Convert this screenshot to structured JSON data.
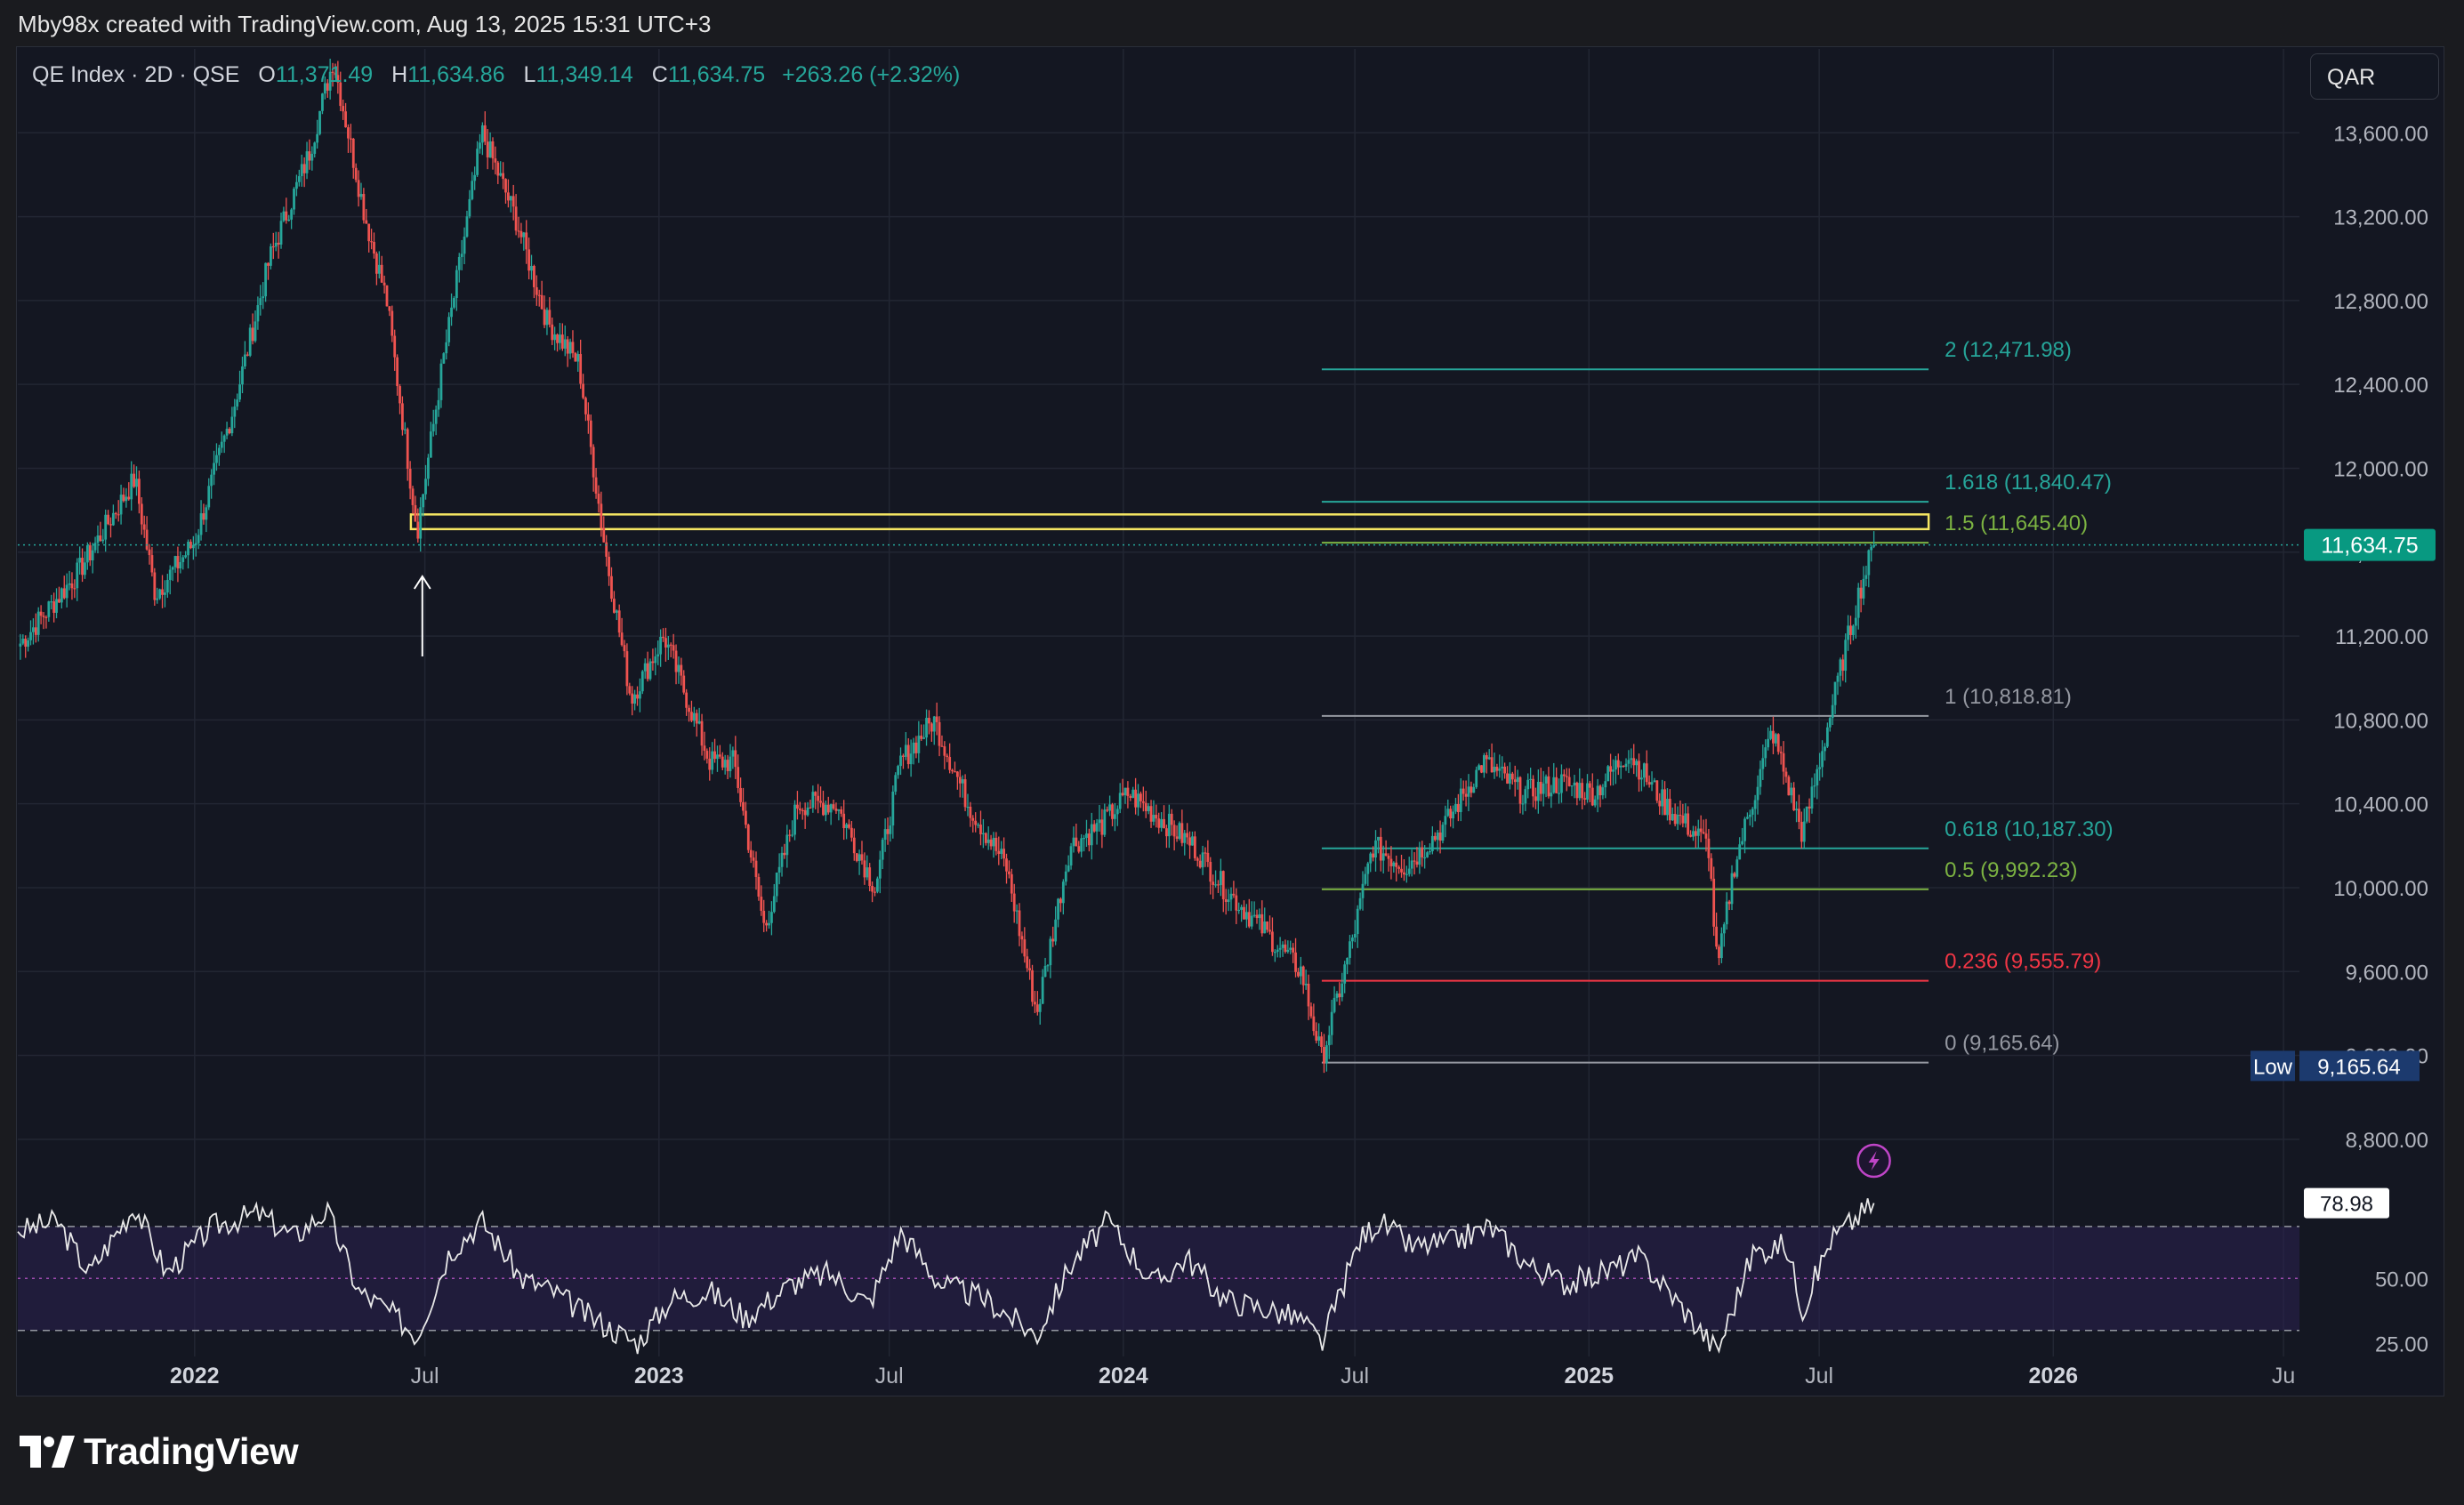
{
  "credit": "Mby98x created with TradingView.com, Aug 13, 2025 15:31 UTC+3",
  "legend": {
    "symbol": "QE Index · 2D · QSE",
    "o_label": "O",
    "o_value": "11,371.49",
    "h_label": "H",
    "h_value": "11,634.86",
    "l_label": "L",
    "l_value": "11,349.14",
    "c_label": "C",
    "c_value": "11,634.75",
    "change": "+263.26 (+2.32%)"
  },
  "currency": "QAR",
  "brand": "TradingView",
  "colors": {
    "up": "#26a69a",
    "down": "#ef5350",
    "background": "#141722",
    "fib_teal": "#26a69a",
    "fib_green": "#7cb342",
    "fib_red": "#f23645",
    "fib_gray": "#9598a1",
    "resistance_box": "#f5e663"
  },
  "chart_data": [
    {
      "type": "candlestick",
      "title": "QE Index · 2D · QSE",
      "ylabel": "QAR",
      "ylim": [
        8600,
        14000
      ],
      "y_ticks": [
        "8,800.00",
        "9,200.00",
        "9,600.00",
        "10,000.00",
        "10,400.00",
        "10,800.00",
        "11,200.00",
        "11,600.00",
        "12,000.00",
        "12,400.00",
        "12,800.00",
        "13,200.00",
        "13,600.00"
      ],
      "x_ticks": [
        "2022",
        "Jul",
        "2023",
        "Jul",
        "2024",
        "Jul",
        "2025",
        "Jul",
        "2026",
        "Ju"
      ],
      "x_range": [
        "2021-08-15",
        "2026-07-10"
      ],
      "last_price": "11,634.75",
      "low_label": "Low",
      "low_value": "9,165.64",
      "series": [
        {
          "key_points": [
            [
              "2021-08-15",
              11150
            ],
            [
              "2021-10-01",
              11500
            ],
            [
              "2021-11-15",
              11950
            ],
            [
              "2021-12-01",
              11400
            ],
            [
              "2022-01-01",
              11650
            ],
            [
              "2022-02-01",
              12300
            ],
            [
              "2022-03-01",
              13000
            ],
            [
              "2022-04-01",
              13500
            ],
            [
              "2022-04-20",
              13950
            ],
            [
              "2022-05-15",
              13200
            ],
            [
              "2022-06-01",
              12800
            ],
            [
              "2022-06-25",
              11700
            ],
            [
              "2022-07-15",
              12500
            ],
            [
              "2022-08-15",
              13600
            ],
            [
              "2022-09-10",
              13200
            ],
            [
              "2022-10-05",
              12700
            ],
            [
              "2022-10-30",
              12500
            ],
            [
              "2022-11-20",
              11600
            ],
            [
              "2022-12-10",
              10900
            ],
            [
              "2023-01-05",
              11200
            ],
            [
              "2023-02-10",
              10600
            ],
            [
              "2023-03-01",
              10600
            ],
            [
              "2023-03-25",
              9800
            ],
            [
              "2023-04-20",
              10400
            ],
            [
              "2023-05-20",
              10400
            ],
            [
              "2023-06-20",
              10000
            ],
            [
              "2023-07-10",
              10600
            ],
            [
              "2023-08-05",
              10800
            ],
            [
              "2023-09-01",
              10400
            ],
            [
              "2023-10-01",
              10100
            ],
            [
              "2023-10-25",
              9400
            ],
            [
              "2023-11-20",
              10200
            ],
            [
              "2023-12-15",
              10300
            ],
            [
              "2024-01-05",
              10450
            ],
            [
              "2024-02-05",
              10300
            ],
            [
              "2024-02-25",
              10200
            ],
            [
              "2024-03-20",
              10000
            ],
            [
              "2024-04-20",
              9800
            ],
            [
              "2024-05-20",
              9600
            ],
            [
              "2024-06-05",
              9180
            ],
            [
              "2024-07-01",
              9800
            ],
            [
              "2024-07-15",
              10200
            ],
            [
              "2024-08-10",
              10100
            ],
            [
              "2024-09-10",
              10300
            ],
            [
              "2024-10-10",
              10600
            ],
            [
              "2024-11-10",
              10450
            ],
            [
              "2024-12-10",
              10500
            ],
            [
              "2025-01-05",
              10450
            ],
            [
              "2025-02-01",
              10650
            ],
            [
              "2025-03-01",
              10400
            ],
            [
              "2025-04-05",
              10200
            ],
            [
              "2025-04-12",
              9600
            ],
            [
              "2025-04-25",
              10100
            ],
            [
              "2025-05-25",
              10750
            ],
            [
              "2025-06-18",
              10250
            ],
            [
              "2025-07-05",
              10700
            ],
            [
              "2025-07-20",
              11100
            ],
            [
              "2025-08-01",
              11400
            ],
            [
              "2025-08-13",
              11634.75
            ]
          ]
        }
      ],
      "annotations": {
        "fib_levels": [
          {
            "label": "2 (12,471.98)",
            "value": 12471.98,
            "color": "#26a69a"
          },
          {
            "label": "1.618 (11,840.47)",
            "value": 11840.47,
            "color": "#26a69a"
          },
          {
            "label": "1.5 (11,645.40)",
            "value": 11645.4,
            "color": "#7cb342"
          },
          {
            "label": "1 (10,818.81)",
            "value": 10818.81,
            "color": "#9598a1"
          },
          {
            "label": "0.618 (10,187.30)",
            "value": 10187.3,
            "color": "#26a69a"
          },
          {
            "label": "0.5 (9,992.23)",
            "value": 9992.23,
            "color": "#7cb342"
          },
          {
            "label": "0.236 (9,555.79)",
            "value": 9555.79,
            "color": "#f23645"
          },
          {
            "label": "0 (9,165.64)",
            "value": 9165.64,
            "color": "#9598a1"
          }
        ],
        "fib_start_date": "2024-06-05",
        "fib_end_date": "2025-09-25",
        "resistance_zone": {
          "from": "2022-06-20",
          "to": "2025-09-25",
          "low": 11710,
          "high": 11780
        },
        "arrow_date": "2022-06-29"
      }
    },
    {
      "type": "line",
      "title": "RSI",
      "ylim": [
        20,
        85
      ],
      "y_ticks": [
        "25.00",
        "50.00"
      ],
      "last_value": "78.98",
      "bands": [
        70,
        50,
        30
      ],
      "series": [
        {
          "key_points": [
            [
              "2021-08-15",
              68
            ],
            [
              "2021-09-15",
              72
            ],
            [
              "2021-10-10",
              52
            ],
            [
              "2021-11-15",
              78
            ],
            [
              "2021-12-10",
              52
            ],
            [
              "2022-01-15",
              70
            ],
            [
              "2022-02-20",
              75
            ],
            [
              "2022-03-20",
              66
            ],
            [
              "2022-04-15",
              76
            ],
            [
              "2022-05-10",
              45
            ],
            [
              "2022-06-01",
              38
            ],
            [
              "2022-06-25",
              28
            ],
            [
              "2022-07-20",
              60
            ],
            [
              "2022-08-15",
              72
            ],
            [
              "2022-09-15",
              50
            ],
            [
              "2022-10-10",
              45
            ],
            [
              "2022-11-05",
              36
            ],
            [
              "2022-12-15",
              25
            ],
            [
              "2023-01-10",
              42
            ],
            [
              "2023-02-10",
              45
            ],
            [
              "2023-03-10",
              35
            ],
            [
              "2023-04-15",
              48
            ],
            [
              "2023-05-15",
              52
            ],
            [
              "2023-06-15",
              40
            ],
            [
              "2023-07-10",
              68
            ],
            [
              "2023-08-10",
              48
            ],
            [
              "2023-09-15",
              42
            ],
            [
              "2023-10-25",
              28
            ],
            [
              "2023-11-20",
              55
            ],
            [
              "2023-12-20",
              72
            ],
            [
              "2024-01-25",
              48
            ],
            [
              "2024-02-20",
              58
            ],
            [
              "2024-03-20",
              42
            ],
            [
              "2024-04-25",
              38
            ],
            [
              "2024-05-20",
              34
            ],
            [
              "2024-06-05",
              25
            ],
            [
              "2024-07-05",
              65
            ],
            [
              "2024-07-20",
              72
            ],
            [
              "2024-08-15",
              62
            ],
            [
              "2024-09-15",
              64
            ],
            [
              "2024-10-15",
              70
            ],
            [
              "2024-11-15",
              55
            ],
            [
              "2024-12-15",
              48
            ],
            [
              "2025-01-10",
              52
            ],
            [
              "2025-02-10",
              58
            ],
            [
              "2025-03-10",
              42
            ],
            [
              "2025-04-12",
              22
            ],
            [
              "2025-05-10",
              60
            ],
            [
              "2025-06-05",
              63
            ],
            [
              "2025-06-18",
              38
            ],
            [
              "2025-07-10",
              65
            ],
            [
              "2025-08-13",
              78.98
            ]
          ]
        }
      ]
    }
  ]
}
